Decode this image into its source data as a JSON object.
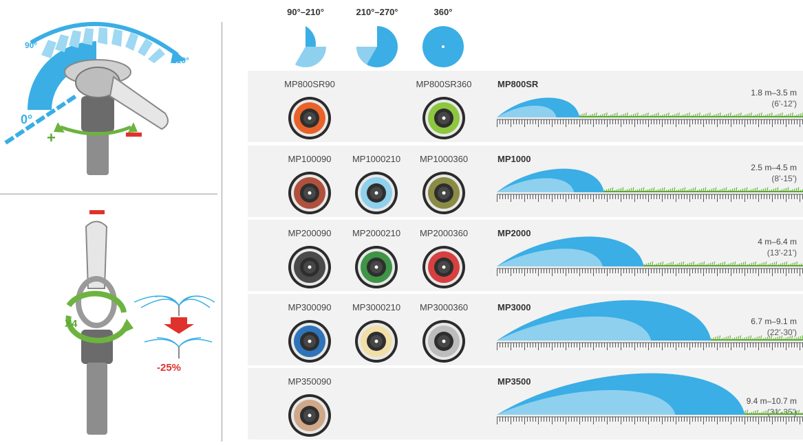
{
  "left": {
    "arc_label_start": "90°",
    "arc_label_end": "210°",
    "zero_label": "0°",
    "plus_label": "+",
    "minus_label": "−",
    "x4_label": "X4",
    "reduction_label": "-25%"
  },
  "arc_headers": [
    {
      "label": "90°–210°"
    },
    {
      "label": "210°–270°"
    },
    {
      "label": "360°"
    }
  ],
  "rows": [
    {
      "series": "MP800SR",
      "range_m": "1.8 m–3.5 m",
      "range_ft": "(6'-12')",
      "throw_fraction": 0.27,
      "nozzles": [
        {
          "slot": 0,
          "name": "MP800SR90",
          "color": "#e8622a"
        },
        {
          "slot": 2,
          "name": "MP800SR360",
          "color": "#8dc63f"
        }
      ]
    },
    {
      "series": "MP1000",
      "range_m": "2.5 m–4.5 m",
      "range_ft": "(8'-15')",
      "throw_fraction": 0.35,
      "nozzles": [
        {
          "slot": 0,
          "name": "MP100090",
          "color": "#b0513d"
        },
        {
          "slot": 1,
          "name": "MP1000210",
          "color": "#8fd0ec"
        },
        {
          "slot": 2,
          "name": "MP1000360",
          "color": "#8a8c45"
        }
      ]
    },
    {
      "series": "MP2000",
      "range_m": "4 m–6.4 m",
      "range_ft": "(13'-21')",
      "throw_fraction": 0.48,
      "nozzles": [
        {
          "slot": 0,
          "name": "MP200090",
          "color": "#4a4a4a"
        },
        {
          "slot": 1,
          "name": "MP2000210",
          "color": "#3f9447"
        },
        {
          "slot": 2,
          "name": "MP2000360",
          "color": "#d74040"
        }
      ]
    },
    {
      "series": "MP3000",
      "range_m": "6.7 m–9.1 m",
      "range_ft": "(22'-30')",
      "throw_fraction": 0.7,
      "nozzles": [
        {
          "slot": 0,
          "name": "MP300090",
          "color": "#2f74b8"
        },
        {
          "slot": 1,
          "name": "MP3000210",
          "color": "#f2dfa8"
        },
        {
          "slot": 2,
          "name": "MP3000360",
          "color": "#bdbdbd"
        }
      ]
    },
    {
      "series": "MP3500",
      "range_m": "9.4 m–10.7 m",
      "range_ft": "(31'-35')",
      "throw_fraction": 0.81,
      "nozzles": [
        {
          "slot": 0,
          "name": "MP350090",
          "color": "#cfa88a"
        }
      ]
    }
  ]
}
